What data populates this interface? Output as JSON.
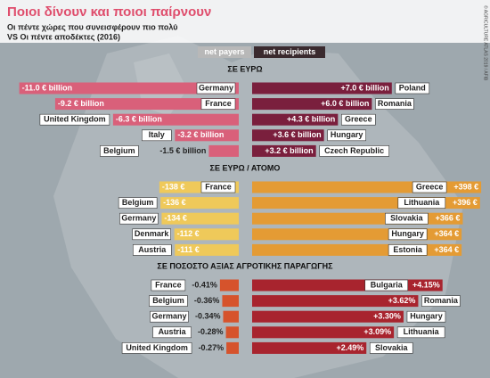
{
  "title": "Ποιοι δίνουν και ποιοι παίρνουν",
  "subtitle": [
    "Οι πέντε χώρες που συνεισφέρουν πιο πολύ",
    "VS Οι πέντε αποδέκτες (2016)"
  ],
  "credit": "© AGRICULTURE ATLAS 2019 / AFIB",
  "legend": [
    {
      "name": "net payers",
      "color": "#b8b8b8"
    },
    {
      "name": "net recipients",
      "color": "#3a2a2e"
    }
  ],
  "chart_data": [
    {
      "type": "bar",
      "title": "ΣΕ ΕΥΡΩ",
      "series": [
        {
          "color": "#d9607a",
          "categories": [
            "Germany",
            "France",
            "United Kingdom",
            "Italy",
            "Belgium"
          ],
          "values": [
            -11.0,
            -9.2,
            -6.3,
            -3.2,
            -1.5
          ],
          "value_labels": [
            "-11.0 € billion",
            "-9.2 € billion",
            "-6.3 € billion",
            "-3.2 € billion",
            "-1.5 € billion"
          ]
        },
        {
          "color": "#7a1f3d",
          "categories": [
            "Poland",
            "Romania",
            "Greece",
            "Hungary",
            "Czech Republic"
          ],
          "values": [
            7.0,
            6.0,
            4.3,
            3.6,
            3.2
          ],
          "value_labels": [
            "+7.0 € billion",
            "+6.0 € billion",
            "+4.3 € billion",
            "+3.6 € billion",
            "+3.2 € billion"
          ]
        }
      ]
    },
    {
      "type": "bar",
      "title": "ΣΕ ΕΥΡΩ / ΑΤΟΜΟ",
      "series": [
        {
          "color": "#efc95a",
          "categories": [
            "France",
            "Belgium",
            "Germany",
            "Denmark",
            "Austria"
          ],
          "values": [
            -138,
            -136,
            -134,
            -112,
            -111
          ],
          "value_labels": [
            "-138 €",
            "-136 €",
            "-134 €",
            "-112 €",
            "-111 €"
          ]
        },
        {
          "color": "#e49b34",
          "categories": [
            "Greece",
            "Lithuania",
            "Slovakia",
            "Hungary",
            "Estonia"
          ],
          "values": [
            398,
            396,
            366,
            364,
            364
          ],
          "value_labels": [
            "+398 €",
            "+396 €",
            "+366 €",
            "+364 €",
            "+364 €"
          ]
        }
      ]
    },
    {
      "type": "bar",
      "title": "ΣΕ ΠΟΣΟΣΤΟ ΑΞΙΑΣ ΑΓΡΟΤΙΚΗΣ ΠΑΡΑΓΩΓΗΣ",
      "series": [
        {
          "color": "#d6532c",
          "categories": [
            "France",
            "Belgium",
            "Germany",
            "Austria",
            "United Kingdom"
          ],
          "values": [
            -0.41,
            -0.36,
            -0.34,
            -0.28,
            -0.27
          ],
          "value_labels": [
            "-0.41%",
            "-0.36%",
            "-0.34%",
            "-0.28%",
            "-0.27%"
          ]
        },
        {
          "color": "#a8242e",
          "categories": [
            "Bulgaria",
            "Romania",
            "Hungary",
            "Lithuania",
            "Slovakia"
          ],
          "values": [
            4.15,
            3.62,
            3.3,
            3.09,
            2.49
          ],
          "value_labels": [
            "+4.15%",
            "+3.62%",
            "+3.30%",
            "+3.09%",
            "+2.49%"
          ]
        }
      ]
    }
  ]
}
